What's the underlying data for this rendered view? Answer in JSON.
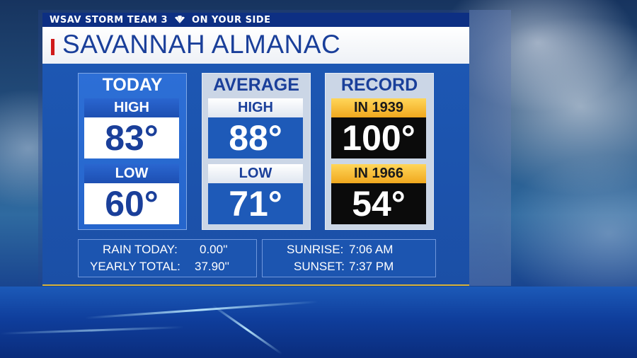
{
  "header": {
    "station": "WSAV STORM TEAM 3",
    "slogan": "ON YOUR SIDE",
    "logo": "nbc-peacock-icon"
  },
  "title": "SAVANNAH ALMANAC",
  "columns": {
    "today": {
      "heading": "TODAY",
      "high_label": "HIGH",
      "high_value": "83°",
      "low_label": "LOW",
      "low_value": "60°"
    },
    "average": {
      "heading": "AVERAGE",
      "high_label": "HIGH",
      "high_value": "88°",
      "low_label": "LOW",
      "low_value": "71°"
    },
    "record": {
      "heading": "RECORD",
      "high_label": "IN 1939",
      "high_value": "100°",
      "low_label": "IN 1966",
      "low_value": "54°"
    }
  },
  "rain": {
    "today_label": "RAIN TODAY:",
    "today_value": "0.00''",
    "yearly_label": "YEARLY TOTAL:",
    "yearly_value": "37.90''"
  },
  "sun": {
    "sunrise_label": "SUNRISE:",
    "sunrise_value": "7:06 AM",
    "sunset_label": "SUNSET:",
    "sunset_value": "7:37 PM"
  },
  "colors": {
    "accent_red": "#d01b1b",
    "record_gold": "#f0a81e",
    "board_blue": "#1d57b3"
  }
}
